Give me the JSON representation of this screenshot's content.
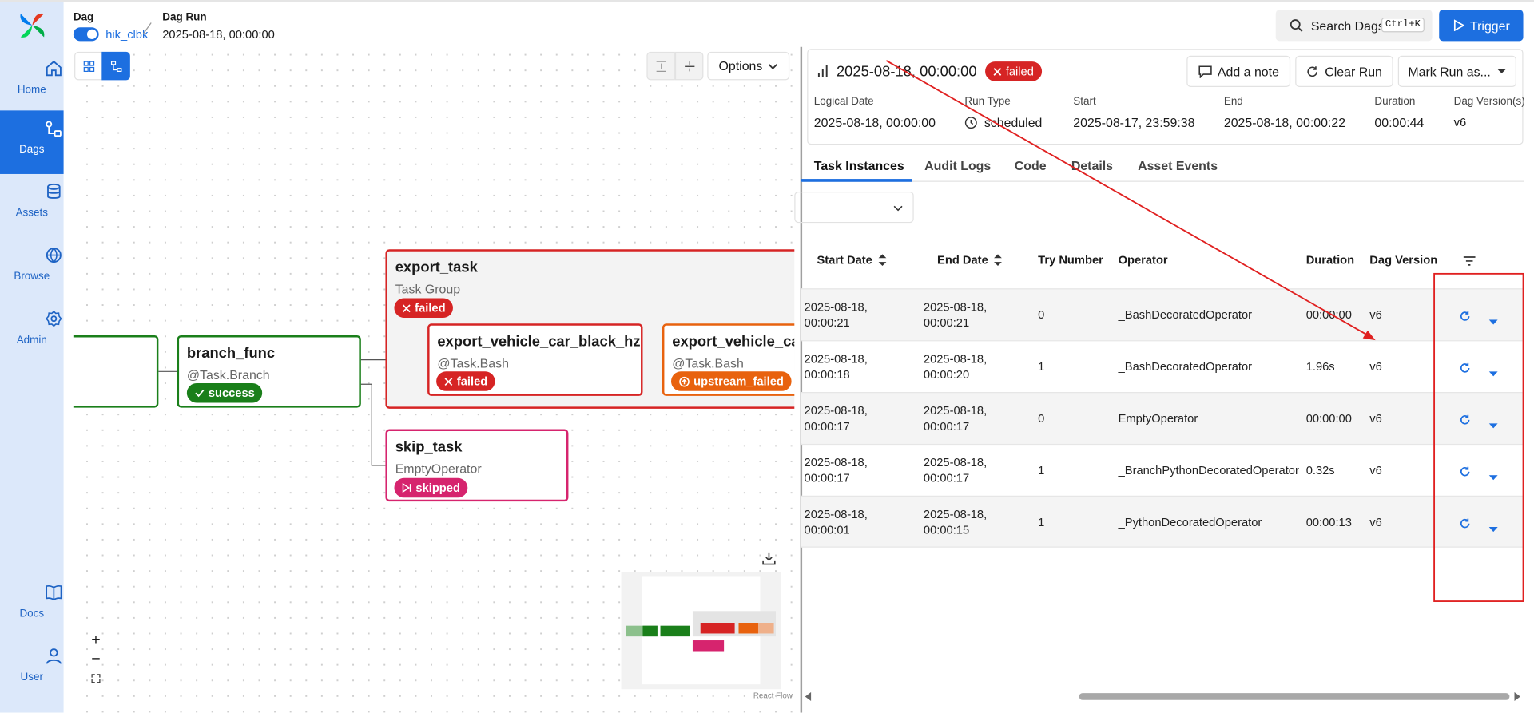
{
  "sidebar": {
    "items": [
      "Home",
      "Dags",
      "Assets",
      "Browse",
      "Admin",
      "Docs",
      "User"
    ]
  },
  "breadcrumb": {
    "dag_label": "Dag",
    "dag_id": "hik_clbk",
    "run_label": "Dag Run",
    "run_id": "2025-08-18, 00:00:00"
  },
  "search": {
    "placeholder": "Search Dags",
    "shortcut": "Ctrl+K"
  },
  "trigger": "Trigger",
  "graph": {
    "options": "Options",
    "attribution": "React Flow",
    "nodes": [
      {
        "label": "branch_func",
        "subtitle": "@Task.Branch",
        "state": "success"
      },
      {
        "label": "export_task",
        "subtitle": "Task Group",
        "state": "failed"
      },
      {
        "label": "export_vehicle_car_black_hz",
        "subtitle": "@Task.Bash",
        "state": "failed"
      },
      {
        "label": "export_vehicle_ca",
        "subtitle": "@Task.Bash",
        "state": "upstream_failed"
      },
      {
        "label": "skip_task",
        "subtitle": "EmptyOperator",
        "state": "skipped"
      }
    ]
  },
  "run": {
    "title": "2025-08-18, 00:00:00",
    "state": "failed",
    "actions": [
      "Add a note",
      "Clear Run",
      "Mark Run as..."
    ],
    "details": [
      {
        "label": "Logical Date",
        "value": "2025-08-18, 00:00:00"
      },
      {
        "label": "Run Type",
        "value": "scheduled"
      },
      {
        "label": "Start",
        "value": "2025-08-17, 23:59:38"
      },
      {
        "label": "End",
        "value": "2025-08-18, 00:00:22"
      },
      {
        "label": "Duration",
        "value": "00:00:44"
      },
      {
        "label": "Dag Version(s)",
        "value": "v6"
      }
    ]
  },
  "tabs": [
    "Task Instances",
    "Audit Logs",
    "Code",
    "Details",
    "Asset Events"
  ],
  "table": {
    "columns": [
      "Start Date",
      "End Date",
      "Try Number",
      "Operator",
      "Duration",
      "Dag Version"
    ],
    "rows": [
      [
        "2025-08-18, 00:00:21",
        "2025-08-18, 00:00:21",
        0,
        "_BashDecoratedOperator",
        "00:00:00",
        "v6"
      ],
      [
        "2025-08-18, 00:00:18",
        "2025-08-18, 00:00:20",
        1,
        "_BashDecoratedOperator",
        "1.96s",
        "v6"
      ],
      [
        "2025-08-18, 00:00:17",
        "2025-08-18, 00:00:17",
        0,
        "EmptyOperator",
        "00:00:00",
        "v6"
      ],
      [
        "2025-08-18, 00:00:17",
        "2025-08-18, 00:00:17",
        1,
        "_BranchPythonDecoratedOperator",
        "0.32s",
        "v6"
      ],
      [
        "2025-08-18, 00:00:01",
        "2025-08-18, 00:00:15",
        1,
        "_PythonDecoratedOperator",
        "00:00:13",
        "v6"
      ]
    ]
  }
}
